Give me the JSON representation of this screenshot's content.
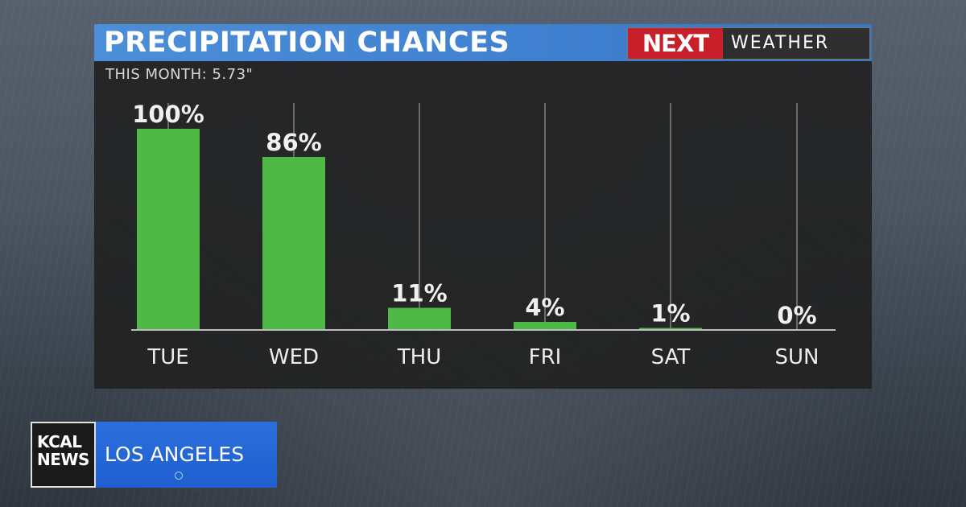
{
  "header": {
    "title": "PRECIPITATION CHANCES",
    "logo_next": "NEXT",
    "logo_weather": "WEATHER",
    "subtitle": "THIS MONTH:  5.73\""
  },
  "chart_data": {
    "type": "bar",
    "categories": [
      "TUE",
      "WED",
      "THU",
      "FRI",
      "SAT",
      "SUN"
    ],
    "values": [
      100,
      86,
      11,
      4,
      1,
      0
    ],
    "value_labels": [
      "100%",
      "86%",
      "11%",
      "4%",
      "1%",
      "0%"
    ],
    "title": "PRECIPITATION CHANCES",
    "xlabel": "",
    "ylabel": "",
    "ylim": [
      0,
      100
    ],
    "grid": true,
    "bar_color": "#4fb947"
  },
  "station": {
    "brand": "KCAL NEWS",
    "city": "LOS ANGELES"
  },
  "colors": {
    "title_bar": "#4d8ed8",
    "panel": "#222222",
    "bar": "#4fb947",
    "next_red": "#c8202a",
    "station_blue": "#2b6fdc"
  }
}
